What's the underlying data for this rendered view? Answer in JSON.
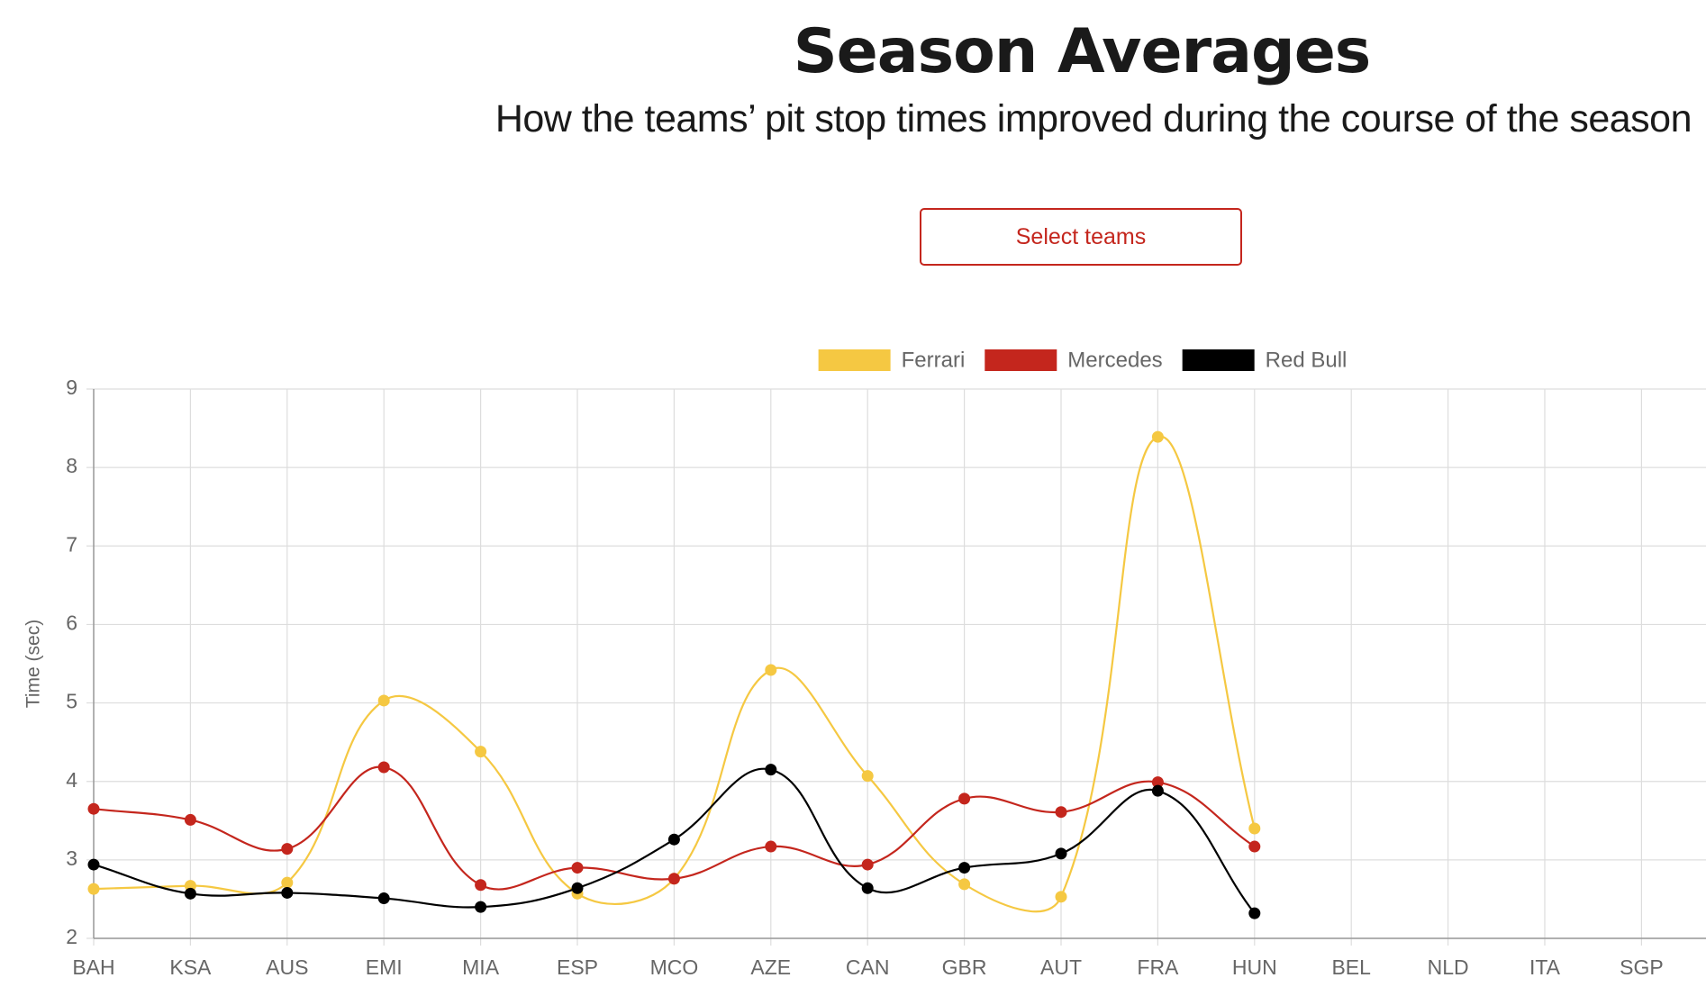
{
  "chart_data": {
    "type": "line",
    "title": "Season Averages",
    "subtitle": "How the teams’ pit stop times improved during the course of the season",
    "button": "Select teams",
    "ylabel": "Time (sec)",
    "categories": [
      "BAH",
      "KSA",
      "AUS",
      "EMI",
      "MIA",
      "ESP",
      "MCO",
      "AZE",
      "CAN",
      "GBR",
      "AUT",
      "FRA",
      "HUN",
      "BEL",
      "NLD",
      "ITA",
      "SGP"
    ],
    "series": [
      {
        "name": "Ferrari",
        "color": "#f5c842",
        "values": [
          2.63,
          2.67,
          2.71,
          5.03,
          4.38,
          2.57,
          2.76,
          5.42,
          4.07,
          2.69,
          2.53,
          8.39,
          3.4,
          null,
          null,
          null,
          null
        ]
      },
      {
        "name": "Mercedes",
        "color": "#c4261d",
        "values": [
          3.65,
          3.51,
          3.14,
          4.18,
          2.68,
          2.9,
          2.76,
          3.17,
          2.94,
          3.78,
          3.61,
          3.99,
          3.17,
          null,
          null,
          null,
          null
        ]
      },
      {
        "name": "Red Bull",
        "color": "#000000",
        "values": [
          2.94,
          2.57,
          2.58,
          2.51,
          2.4,
          2.64,
          3.26,
          4.15,
          2.64,
          2.9,
          3.08,
          3.88,
          2.32,
          null,
          null,
          null,
          null
        ]
      }
    ],
    "ylim": [
      2,
      9
    ],
    "yticks": [
      2,
      3,
      4,
      5,
      6,
      7,
      8,
      9
    ],
    "grid": true,
    "legend": "top"
  }
}
